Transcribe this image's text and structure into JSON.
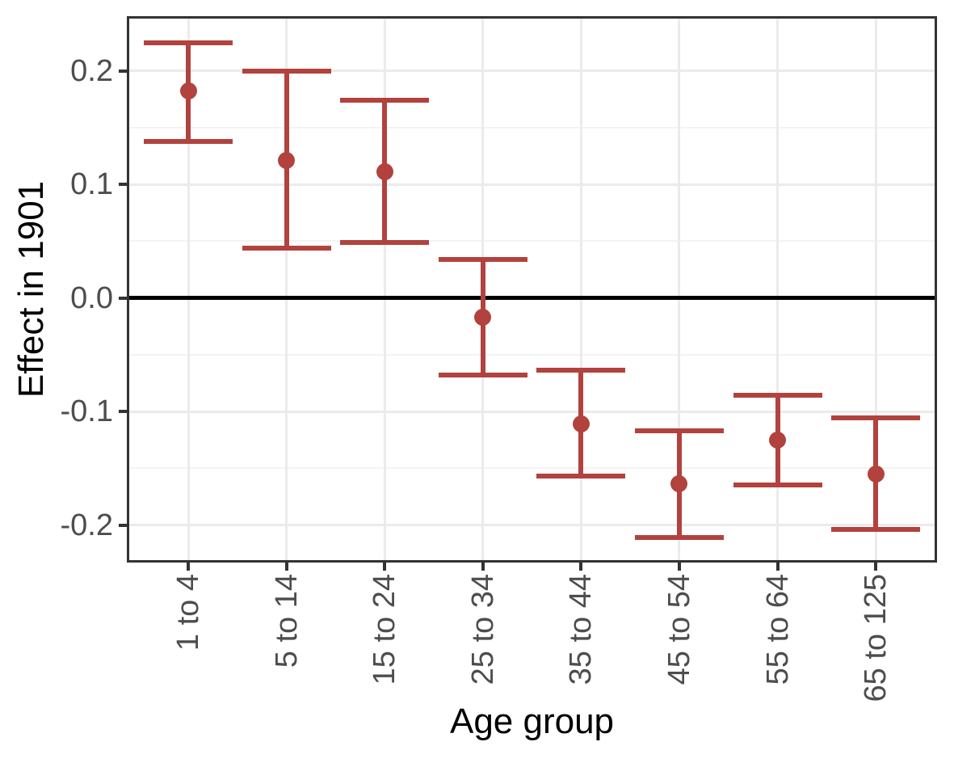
{
  "chart_data": {
    "type": "pointrange",
    "title": "",
    "xlabel": "Age group",
    "ylabel": "Effect in 1901",
    "categories": [
      "1 to 4",
      "5 to 14",
      "15 to 24",
      "25 to 34",
      "35 to 44",
      "45 to 54",
      "55 to 64",
      "65 to 125"
    ],
    "series": [
      {
        "name": "Effect in 1901",
        "estimates": [
          0.182,
          0.121,
          0.111,
          -0.017,
          -0.111,
          -0.164,
          -0.125,
          -0.155
        ],
        "ci_low": [
          0.138,
          0.044,
          0.049,
          -0.068,
          -0.157,
          -0.211,
          -0.165,
          -0.204
        ],
        "ci_high": [
          0.225,
          0.2,
          0.174,
          0.034,
          -0.064,
          -0.117,
          -0.086,
          -0.106
        ]
      }
    ],
    "y_ticks": [
      0.2,
      0.1,
      0.0,
      -0.1,
      -0.2
    ],
    "y_tick_labels": [
      "0.2",
      "0.1",
      "0.0",
      "-0.1",
      "-0.2"
    ],
    "y_minor_gridlines": [
      0.15,
      0.05,
      -0.05,
      -0.15
    ],
    "ylim": [
      -0.231,
      0.246
    ],
    "reference_line_y": 0,
    "grid": true,
    "legend": "none",
    "colors": {
      "point_range": "#B2423E",
      "reference_line": "#000000",
      "grid_major": "#EBEBEB",
      "grid_minor": "#F3F3F3",
      "axis_text": "#4D4D4D",
      "axis_title": "#000000",
      "panel_border": "#333333",
      "tick_marks": "#333333",
      "background": "#FFFFFF"
    }
  }
}
